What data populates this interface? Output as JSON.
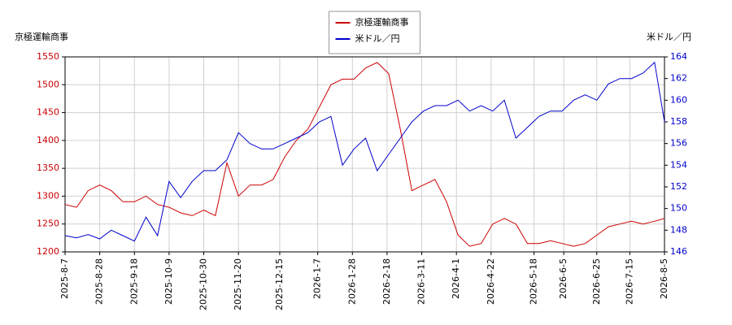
{
  "chart_data": {
    "type": "line",
    "y_label": "京極運輸商事",
    "y2_label": "米ドル／円",
    "x": [
      "2025-8-7",
      "2025-8-14",
      "2025-8-21",
      "2025-8-28",
      "2025-9-4",
      "2025-9-11",
      "2025-9-18",
      "2025-9-25",
      "2025-10-2",
      "2025-10-9",
      "2025-10-16",
      "2025-10-23",
      "2025-10-30",
      "2025-11-6",
      "2025-11-13",
      "2025-11-20",
      "2025-11-27",
      "2025-12-4",
      "2025-12-11",
      "2025-12-18",
      "2025-12-25",
      "2026-1-1",
      "2026-1-8",
      "2026-1-15",
      "2026-1-22",
      "2026-1-29",
      "2026-2-5",
      "2026-2-12",
      "2026-2-19",
      "2026-2-26",
      "2026-3-5",
      "2026-3-12",
      "2026-3-19",
      "2026-3-26",
      "2026-4-2",
      "2026-4-9",
      "2026-4-16",
      "2026-4-23",
      "2026-4-30",
      "2026-5-7",
      "2026-5-14",
      "2026-5-21",
      "2026-5-28",
      "2026-6-4",
      "2026-6-11",
      "2026-6-18",
      "2026-6-25",
      "2026-7-2",
      "2026-7-9",
      "2026-7-16",
      "2026-7-23",
      "2026-7-30",
      "2026-8-5"
    ],
    "series": [
      {
        "name": "京極運輸商事",
        "color": "#cc0000",
        "axis": "y",
        "values": [
          1285,
          1280,
          1310,
          1320,
          1310,
          1290,
          1290,
          1300,
          1285,
          1280,
          1270,
          1265,
          1275,
          1265,
          1360,
          1300,
          1320,
          1320,
          1330,
          1370,
          1400,
          1420,
          1460,
          1500,
          1510,
          1510,
          1530,
          1540,
          1520,
          1420,
          1310,
          1320,
          1330,
          1290,
          1230,
          1210,
          1215,
          1250,
          1260,
          1250,
          1215,
          1215,
          1220,
          1215,
          1210,
          1215,
          1230,
          1245,
          1250,
          1255,
          1250,
          1255,
          1260
        ]
      },
      {
        "name": "米ドル／円",
        "color": "#0000cc",
        "axis": "y2",
        "values": [
          147.5,
          147.3,
          147.6,
          147.2,
          148.0,
          147.5,
          147.0,
          149.2,
          147.5,
          152.5,
          151.0,
          152.5,
          153.5,
          153.5,
          154.5,
          157.0,
          156.0,
          155.5,
          155.5,
          156.0,
          156.5,
          157.0,
          158.0,
          158.5,
          154.0,
          155.5,
          156.5,
          153.5,
          155.0,
          156.5,
          158.0,
          159.0,
          159.5,
          159.5,
          160.0,
          159.0,
          159.5,
          159.0,
          160.0,
          156.5,
          157.5,
          158.5,
          159.0,
          159.0,
          160.0,
          160.5,
          160.0,
          161.5,
          162.0,
          162.0,
          162.5,
          163.5,
          158.0
        ]
      }
    ],
    "xlim": [
      "2025-8-7",
      "2026-8-5"
    ],
    "xticks": [
      "2025-8-7",
      "2025-8-28",
      "2025-9-18",
      "2025-10-9",
      "2025-10-30",
      "2025-11-20",
      "2025-12-15",
      "2026-1-7",
      "2026-1-28",
      "2026-2-18",
      "2026-3-11",
      "2026-4-1",
      "2026-4-22",
      "2026-5-18",
      "2026-6-5",
      "2026-6-25",
      "2026-7-15",
      "2026-8-5"
    ],
    "ylim": [
      1200,
      1550
    ],
    "yticks": [
      1200,
      1250,
      1300,
      1350,
      1400,
      1450,
      1500,
      1550
    ],
    "y2lim": [
      146,
      164
    ],
    "y2ticks": [
      146,
      148,
      150,
      152,
      154,
      156,
      158,
      160,
      162,
      164
    ],
    "grid": true,
    "legend": "top"
  }
}
